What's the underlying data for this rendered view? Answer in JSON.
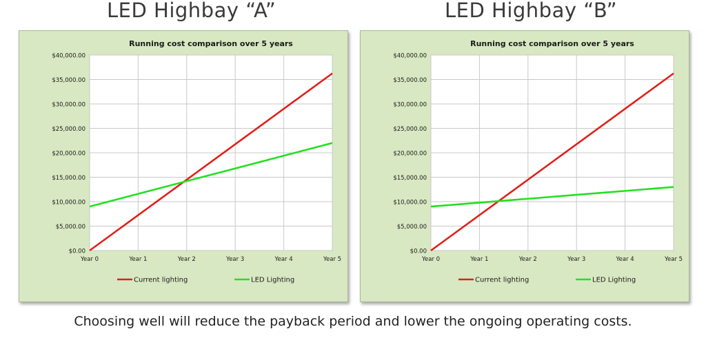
{
  "headings": [
    "LED Highbay “A”",
    "LED Highbay “B”"
  ],
  "caption": "Choosing well will reduce the payback period and lower the ongoing operating costs.",
  "colors": {
    "panel_bg": "#d8e8c2",
    "plot_bg": "#ffffff",
    "grid": "#c8c8c8",
    "current": "#e0201a",
    "led": "#22e020"
  },
  "chart_data": [
    {
      "type": "line",
      "title": "Running cost comparison over 5 years",
      "categories": [
        "Year 0",
        "Year 1",
        "Year 2",
        "Year 3",
        "Year 4",
        "Year 5"
      ],
      "ylim": [
        0,
        40000
      ],
      "yticks": [
        "$0.00",
        "$5,000.00",
        "$10,000.00",
        "$15,000.00",
        "$20,000.00",
        "$25,000.00",
        "$30,000.00",
        "$35,000.00",
        "$40,000.00"
      ],
      "legend": "bottom",
      "grid": true,
      "series": [
        {
          "name": "Current lighting",
          "values": [
            0,
            7250,
            14500,
            21750,
            29000,
            36250
          ]
        },
        {
          "name": "LED Lighting",
          "values": [
            9000,
            11600,
            14200,
            16800,
            19400,
            22000
          ]
        }
      ]
    },
    {
      "type": "line",
      "title": "Running cost comparison over 5 years",
      "categories": [
        "Year 0",
        "Year 1",
        "Year 2",
        "Year 3",
        "Year 4",
        "Year 5"
      ],
      "ylim": [
        0,
        40000
      ],
      "yticks": [
        "$0.00",
        "$5,000.00",
        "$10,000.00",
        "$15,000.00",
        "$20,000.00",
        "$25,000.00",
        "$30,000.00",
        "$35,000.00",
        "$40,000.00"
      ],
      "legend": "bottom",
      "grid": true,
      "series": [
        {
          "name": "Current lighting",
          "values": [
            0,
            7250,
            14500,
            21750,
            29000,
            36250
          ]
        },
        {
          "name": "LED Lighting",
          "values": [
            9000,
            9800,
            10600,
            11400,
            12200,
            13000
          ]
        }
      ]
    }
  ]
}
